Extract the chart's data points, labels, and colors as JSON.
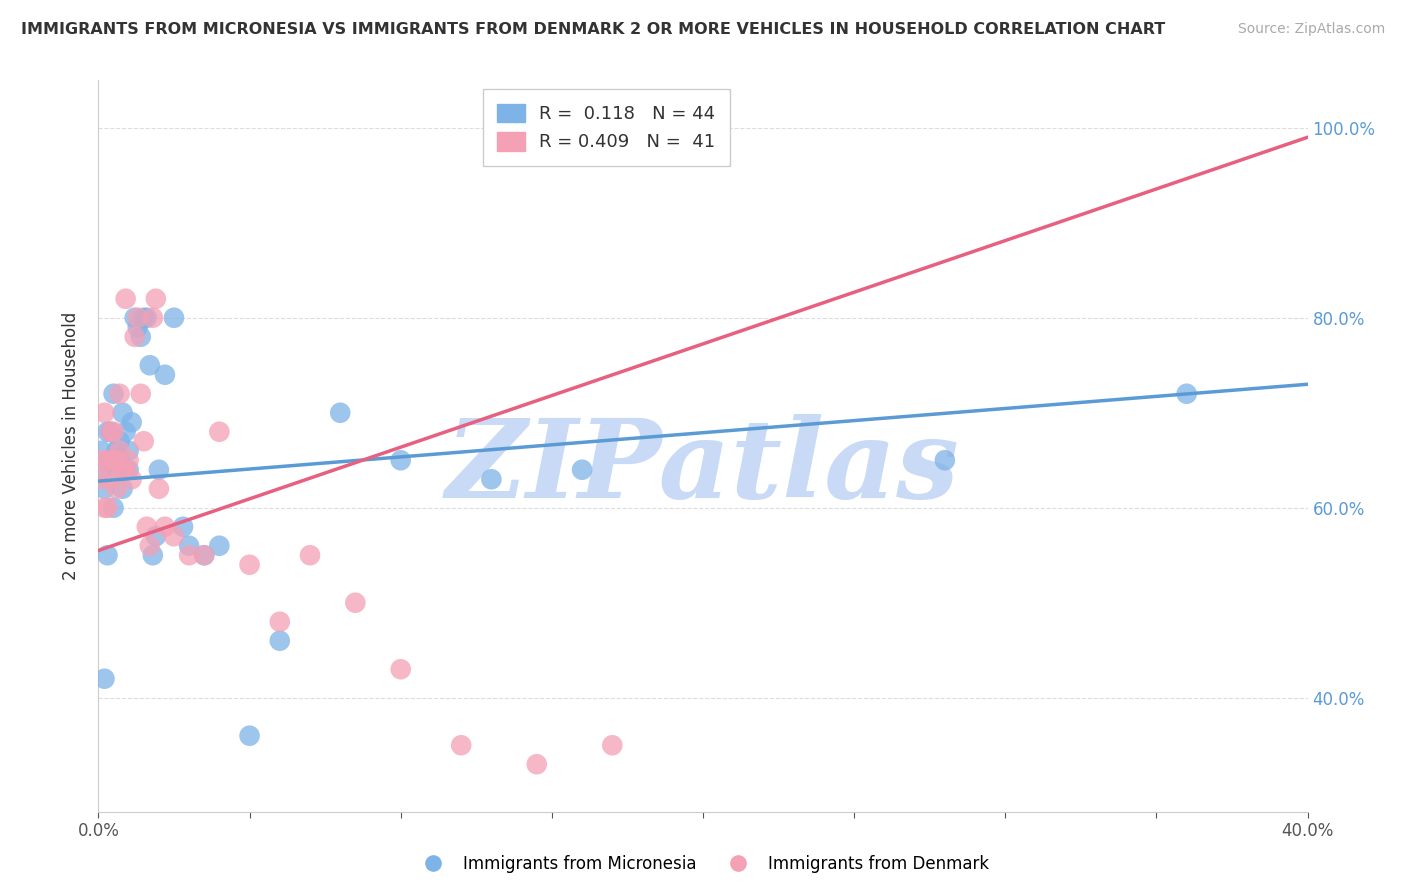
{
  "title": "IMMIGRANTS FROM MICRONESIA VS IMMIGRANTS FROM DENMARK 2 OR MORE VEHICLES IN HOUSEHOLD CORRELATION CHART",
  "source": "Source: ZipAtlas.com",
  "ylabel": "2 or more Vehicles in Household",
  "xlim": [
    0.0,
    0.4
  ],
  "ylim": [
    0.28,
    1.05
  ],
  "xtick_positions": [
    0.0,
    0.05,
    0.1,
    0.15,
    0.2,
    0.25,
    0.3,
    0.35,
    0.4
  ],
  "xticklabels": [
    "0.0%",
    "",
    "",
    "",
    "",
    "",
    "",
    "",
    "40.0%"
  ],
  "ytick_positions": [
    0.4,
    0.6,
    0.8,
    1.0
  ],
  "yticklabels": [
    "40.0%",
    "60.0%",
    "80.0%",
    "100.0%"
  ],
  "legend_labels": [
    "Immigrants from Micronesia",
    "Immigrants from Denmark"
  ],
  "r_micronesia": 0.118,
  "n_micronesia": 44,
  "r_denmark": 0.409,
  "n_denmark": 41,
  "color_micronesia": "#7eb3e8",
  "color_denmark": "#f4a0b5",
  "line_color_micronesia": "#5b9bd5",
  "line_color_denmark": "#e86080",
  "watermark": "ZIPatlas",
  "watermark_color": "#c8daf5",
  "background_color": "#ffffff",
  "grid_color": "#dddddd",
  "right_tick_color": "#5b9bd5",
  "scatter_micronesia_x": [
    0.001,
    0.001,
    0.002,
    0.002,
    0.003,
    0.003,
    0.004,
    0.004,
    0.005,
    0.005,
    0.006,
    0.006,
    0.007,
    0.007,
    0.008,
    0.008,
    0.009,
    0.009,
    0.01,
    0.01,
    0.011,
    0.012,
    0.013,
    0.014,
    0.015,
    0.016,
    0.017,
    0.018,
    0.019,
    0.02,
    0.022,
    0.025,
    0.028,
    0.03,
    0.035,
    0.04,
    0.05,
    0.06,
    0.08,
    0.1,
    0.13,
    0.16,
    0.28,
    0.36
  ],
  "scatter_micronesia_y": [
    0.64,
    0.66,
    0.42,
    0.62,
    0.55,
    0.68,
    0.65,
    0.68,
    0.6,
    0.72,
    0.64,
    0.66,
    0.67,
    0.65,
    0.62,
    0.7,
    0.68,
    0.64,
    0.64,
    0.66,
    0.69,
    0.8,
    0.79,
    0.78,
    0.8,
    0.8,
    0.75,
    0.55,
    0.57,
    0.64,
    0.74,
    0.8,
    0.58,
    0.56,
    0.55,
    0.56,
    0.36,
    0.46,
    0.7,
    0.65,
    0.63,
    0.64,
    0.65,
    0.72
  ],
  "scatter_denmark_x": [
    0.001,
    0.001,
    0.002,
    0.002,
    0.003,
    0.003,
    0.004,
    0.004,
    0.005,
    0.005,
    0.006,
    0.006,
    0.007,
    0.007,
    0.008,
    0.009,
    0.009,
    0.01,
    0.011,
    0.012,
    0.013,
    0.014,
    0.015,
    0.016,
    0.017,
    0.018,
    0.019,
    0.02,
    0.022,
    0.025,
    0.03,
    0.035,
    0.04,
    0.05,
    0.06,
    0.07,
    0.085,
    0.1,
    0.12,
    0.145,
    0.17
  ],
  "scatter_denmark_y": [
    0.63,
    0.65,
    0.7,
    0.6,
    0.6,
    0.65,
    0.63,
    0.68,
    0.65,
    0.68,
    0.62,
    0.65,
    0.72,
    0.66,
    0.64,
    0.64,
    0.82,
    0.65,
    0.63,
    0.78,
    0.8,
    0.72,
    0.67,
    0.58,
    0.56,
    0.8,
    0.82,
    0.62,
    0.58,
    0.57,
    0.55,
    0.55,
    0.68,
    0.54,
    0.48,
    0.55,
    0.5,
    0.43,
    0.35,
    0.33,
    0.35
  ],
  "mic_trend_x": [
    0.0,
    0.4
  ],
  "mic_trend_y": [
    0.628,
    0.73
  ],
  "den_trend_x": [
    0.0,
    0.4
  ],
  "den_trend_y": [
    0.555,
    0.99
  ]
}
